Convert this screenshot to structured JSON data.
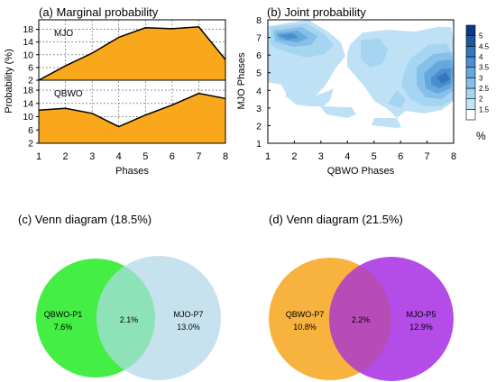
{
  "panels": {
    "a": {
      "title": "(a) Marginal probability",
      "ylabel": "Probability (%)",
      "xlabel": "Phases"
    },
    "b": {
      "title": "(b) Joint probability",
      "ylabel": "MJO Phases",
      "xlabel": "QBWO Phases",
      "colorbar_unit": "%"
    },
    "c": {
      "title": "(c) Venn diagram (18.5%)",
      "left_label": "QBWO-P1",
      "left_value": "7.6%",
      "overlap_value": "2.1%",
      "right_label": "MJO-P7",
      "right_value": "13.0%",
      "colors": {
        "left": "#44ee44",
        "right": "#c6e2ee",
        "overlap": "#8ee2b8"
      }
    },
    "d": {
      "title": "(d) Venn diagram (21.5%)",
      "left_label": "QBWO-P7",
      "left_value": "10.8%",
      "overlap_value": "2.2%",
      "right_label": "MJO-P5",
      "right_value": "12.9%",
      "colors": {
        "left": "#f8b23e",
        "right": "#b44ce8",
        "overlap": "#b84cb6"
      }
    }
  },
  "chart_data": [
    {
      "type": "area",
      "panel": "a",
      "x": [
        1,
        2,
        3,
        4,
        5,
        6,
        7,
        8
      ],
      "xticks": [
        "1",
        "2",
        "3",
        "4",
        "5",
        "6",
        "7",
        "8"
      ],
      "fill_color": "#f8a81a",
      "series": [
        {
          "name": "MJO",
          "values": [
            2,
            6.5,
            10.5,
            15.5,
            18.5,
            18.2,
            18.8,
            8.5
          ],
          "yticks": [
            "2",
            "6",
            "10",
            "14",
            "18"
          ],
          "ylim": [
            2,
            21
          ]
        },
        {
          "name": "QBWO",
          "values": [
            12,
            12.5,
            11,
            7,
            10.5,
            13.5,
            17,
            15.5
          ],
          "yticks": [
            "2",
            "6",
            "10",
            "14",
            "18"
          ],
          "ylim": [
            2,
            21
          ]
        }
      ],
      "grid": true
    },
    {
      "type": "heatmap",
      "panel": "b",
      "x_range": [
        1,
        8
      ],
      "y_range": [
        1,
        8
      ],
      "xticks": [
        "1",
        "2",
        "3",
        "4",
        "5",
        "6",
        "7",
        "8"
      ],
      "yticks": [
        "1",
        "2",
        "3",
        "4",
        "5",
        "6",
        "7",
        "8"
      ],
      "colorbar_levels": [
        "1.5",
        "2",
        "2.5",
        "3",
        "3.5",
        "4",
        "4.5",
        "5"
      ],
      "colorbar_colors": [
        "#ffffff",
        "#c3e4f7",
        "#a6d5f1",
        "#86c0e8",
        "#65a8dc",
        "#4b8fcf",
        "#3576bd",
        "#1f56a0",
        "#0b3a82"
      ]
    }
  ]
}
